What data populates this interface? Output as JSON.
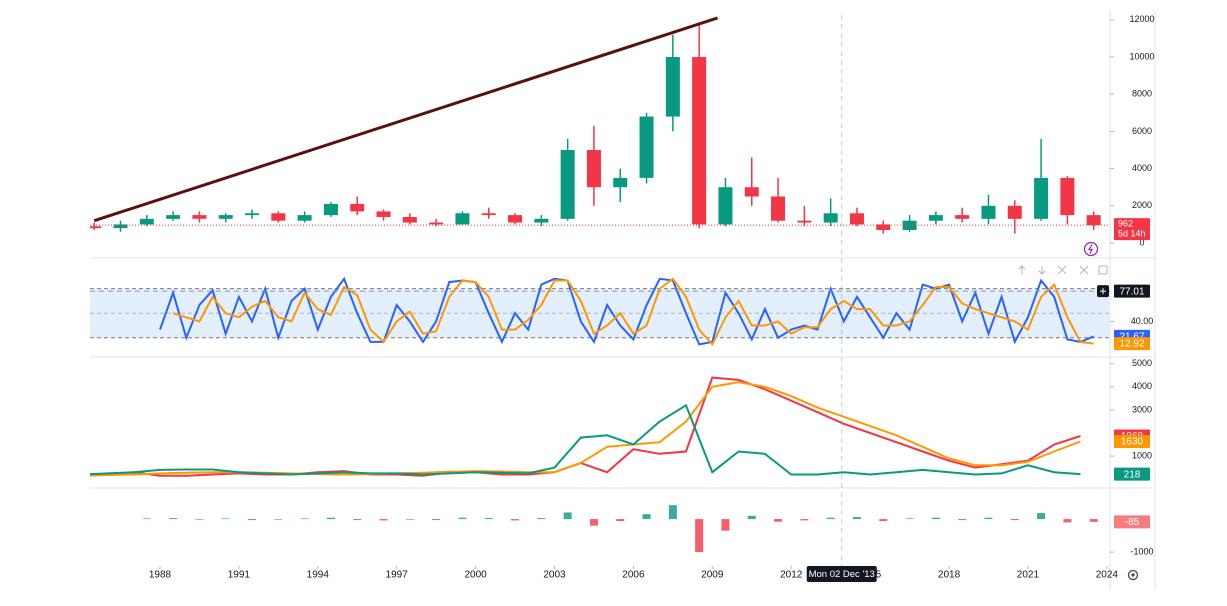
{
  "chart_data": [
    {
      "type": "candlestick",
      "x": [
        1985,
        1986,
        1987,
        1988,
        1989,
        1990,
        1991,
        1992,
        1993,
        1994,
        1995,
        1996,
        1997,
        1998,
        1999,
        2000,
        2001,
        2002,
        2003,
        2004,
        2005,
        2006,
        2007,
        2008,
        2009,
        2010,
        2011,
        2012,
        2013,
        2014,
        2015,
        2016,
        2017,
        2018,
        2019,
        2020,
        2021,
        2022,
        2023
      ],
      "open": [
        900,
        800,
        1000,
        1300,
        1500,
        1300,
        1500,
        1600,
        1200,
        1500,
        2100,
        1700,
        1400,
        1100,
        1000,
        1600,
        1500,
        1100,
        1300,
        5000,
        3000,
        3500,
        6800,
        10000,
        1000,
        3000,
        2500,
        1200,
        1100,
        1600,
        1000,
        700,
        1200,
        1500,
        1300,
        2000,
        1300,
        3500,
        1500
      ],
      "high": [
        1100,
        1200,
        1500,
        1700,
        1700,
        1600,
        1800,
        1700,
        1700,
        2200,
        2500,
        1800,
        1600,
        1300,
        1700,
        1900,
        1600,
        1500,
        5600,
        6300,
        4000,
        7000,
        11200,
        11800,
        3500,
        4600,
        3500,
        2000,
        2400,
        1900,
        1200,
        1500,
        1700,
        1900,
        2600,
        2300,
        5600,
        3600,
        1700
      ],
      "low": [
        700,
        600,
        900,
        1200,
        1100,
        1100,
        1300,
        1100,
        1100,
        1400,
        1500,
        1200,
        1000,
        900,
        1000,
        1300,
        1000,
        900,
        1200,
        2000,
        2200,
        3200,
        6000,
        800,
        900,
        2000,
        1100,
        900,
        900,
        900,
        500,
        600,
        1000,
        1100,
        1000,
        500,
        1200,
        1000,
        700
      ],
      "close": [
        800,
        1000,
        1300,
        1500,
        1300,
        1500,
        1600,
        1200,
        1500,
        2100,
        1700,
        1400,
        1100,
        1000,
        1600,
        1500,
        1100,
        1300,
        5000,
        3000,
        3500,
        6800,
        10000,
        1000,
        3000,
        2500,
        1200,
        1100,
        1600,
        1000,
        700,
        1200,
        1500,
        1300,
        2000,
        1300,
        3500,
        1500,
        962
      ],
      "up_color": "#089981",
      "down_color": "#f23645",
      "countdown": "5d 14h",
      "trendline": {
        "x": [
          1985.5,
          2009.2
        ],
        "y": [
          1200,
          12100
        ],
        "color": "#5b1010"
      },
      "ylim": [
        -645,
        12260
      ],
      "yticks": [
        0,
        2000,
        4000,
        6000,
        8000,
        10000,
        12000
      ]
    },
    {
      "type": "line",
      "x": [
        1988,
        1988.5,
        1989,
        1989.5,
        1990,
        1990.5,
        1991,
        1991.5,
        1992,
        1992.5,
        1993,
        1993.5,
        1994,
        1994.5,
        1995,
        1995.5,
        1996,
        1996.5,
        1997,
        1997.5,
        1998,
        1998.5,
        1999,
        1999.5,
        2000,
        2000.5,
        2001,
        2001.5,
        2002,
        2002.5,
        2003,
        2003.5,
        2004,
        2004.5,
        2005,
        2005.5,
        2006,
        2006.5,
        2007,
        2007.5,
        2008,
        2008.5,
        2009,
        2009.5,
        2010,
        2010.5,
        2011,
        2011.5,
        2012,
        2012.5,
        2013,
        2013.5,
        2014,
        2014.5,
        2015,
        2015.5,
        2016,
        2016.5,
        2017,
        2017.5,
        2018,
        2018.5,
        2019,
        2019.5,
        2020,
        2020.5,
        2021,
        2021.5,
        2022,
        2022.5,
        2023,
        2023.5
      ],
      "series": [
        {
          "color": "#2962ff",
          "values": [
            30,
            75,
            20,
            60,
            78,
            25,
            70,
            40,
            80,
            20,
            65,
            80,
            30,
            70,
            92,
            50,
            15,
            15,
            60,
            40,
            15,
            40,
            88,
            90,
            88,
            50,
            15,
            50,
            30,
            85,
            92,
            90,
            40,
            15,
            60,
            35,
            18,
            60,
            92,
            90,
            50,
            12,
            15,
            75,
            50,
            18,
            55,
            20,
            30,
            35,
            30,
            80,
            40,
            70,
            45,
            20,
            50,
            30,
            85,
            80,
            85,
            40,
            75,
            25,
            70,
            15,
            45,
            90,
            70,
            18,
            15,
            21.67
          ]
        },
        {
          "color": "#ff9800",
          "values": [
            null,
            50,
            45,
            40,
            70,
            50,
            45,
            58,
            65,
            45,
            40,
            75,
            55,
            48,
            82,
            72,
            30,
            15,
            40,
            52,
            25,
            28,
            70,
            90,
            88,
            70,
            30,
            30,
            42,
            60,
            90,
            90,
            65,
            25,
            35,
            50,
            25,
            35,
            80,
            92,
            70,
            30,
            12,
            45,
            65,
            35,
            35,
            40,
            25,
            33,
            33,
            55,
            65,
            55,
            55,
            35,
            35,
            40,
            60,
            82,
            82,
            62,
            55,
            50,
            45,
            40,
            30,
            70,
            85,
            45,
            15,
            12.92
          ]
        }
      ],
      "band": [
        80,
        20
      ],
      "midline": 50,
      "band_color": "#e3effd",
      "crosshair": 77.01,
      "ylim": [
        -1,
        115
      ],
      "yticks": [
        {
          "value": 40,
          "label": "40.00"
        }
      ]
    },
    {
      "type": "line",
      "x": [
        1985,
        1986,
        1987,
        1988,
        1989,
        1990,
        1991,
        1992,
        1993,
        1994,
        1995,
        1996,
        1997,
        1998,
        1999,
        2000,
        2001,
        2002,
        2003,
        2004,
        2005,
        2006,
        2007,
        2008,
        2009,
        2010,
        2011,
        2012,
        2013,
        2014,
        2015,
        2016,
        2017,
        2018,
        2019,
        2020,
        2021,
        2022,
        2023
      ],
      "series": [
        {
          "color": "#f23645",
          "values": [
            150,
            200,
            300,
            150,
            150,
            200,
            250,
            200,
            200,
            300,
            350,
            200,
            200,
            150,
            300,
            300,
            200,
            200,
            300,
            700,
            300,
            1300,
            1100,
            1200,
            4400,
            4300,
            3900,
            3400,
            2900,
            2400,
            2000,
            1600,
            1200,
            800,
            500,
            650,
            800,
            1500,
            1868
          ]
        },
        {
          "color": "#ff9800",
          "values": [
            150,
            180,
            200,
            250,
            280,
            300,
            300,
            280,
            250,
            220,
            200,
            220,
            250,
            280,
            320,
            350,
            330,
            300,
            300,
            700,
            1400,
            1500,
            1600,
            2500,
            4000,
            4200,
            4000,
            3600,
            3100,
            2700,
            2300,
            1900,
            1400,
            900,
            600,
            600,
            750,
            1200,
            1630
          ]
        },
        {
          "color": "#089981",
          "values": [
            200,
            250,
            300,
            400,
            420,
            420,
            300,
            250,
            200,
            250,
            300,
            250,
            250,
            200,
            250,
            300,
            280,
            250,
            500,
            1800,
            1900,
            1500,
            2500,
            3200,
            300,
            1200,
            1100,
            200,
            200,
            300,
            200,
            300,
            400,
            300,
            200,
            250,
            600,
            300,
            218
          ]
        }
      ],
      "ylim": [
        -340,
        5250
      ],
      "yticks": [
        1000,
        3000,
        4000,
        5000
      ]
    },
    {
      "type": "bar",
      "x": [
        1987,
        1988,
        1989,
        1990,
        1991,
        1992,
        1993,
        1994,
        1995,
        1996,
        1997,
        1998,
        1999,
        2000,
        2001,
        2002,
        2003,
        2004,
        2005,
        2006,
        2007,
        2008,
        2009,
        2010,
        2011,
        2012,
        2013,
        2014,
        2015,
        2016,
        2017,
        2018,
        2019,
        2020,
        2021,
        2022,
        2023
      ],
      "values": [
        20,
        30,
        -20,
        20,
        -30,
        -20,
        20,
        40,
        -30,
        -40,
        -20,
        -30,
        40,
        30,
        -40,
        30,
        200,
        -200,
        -60,
        150,
        420,
        -1000,
        -350,
        100,
        -80,
        -40,
        40,
        60,
        -60,
        20,
        40,
        -30,
        40,
        -30,
        180,
        -100,
        -85
      ],
      "up_color": "#089981",
      "down_color": "#f23645",
      "ylim": [
        -1390,
        880
      ],
      "yticks": [
        -1000
      ],
      "xlim": [
        1985.34,
        2024.12
      ],
      "xticks": [
        1988,
        1991,
        1994,
        1997,
        2000,
        2003,
        2006,
        2009,
        2012,
        2015,
        2018,
        2021,
        2024
      ],
      "crosshair_x": {
        "value": 2013.92,
        "label": "Mon 02 Dec '13"
      }
    }
  ]
}
